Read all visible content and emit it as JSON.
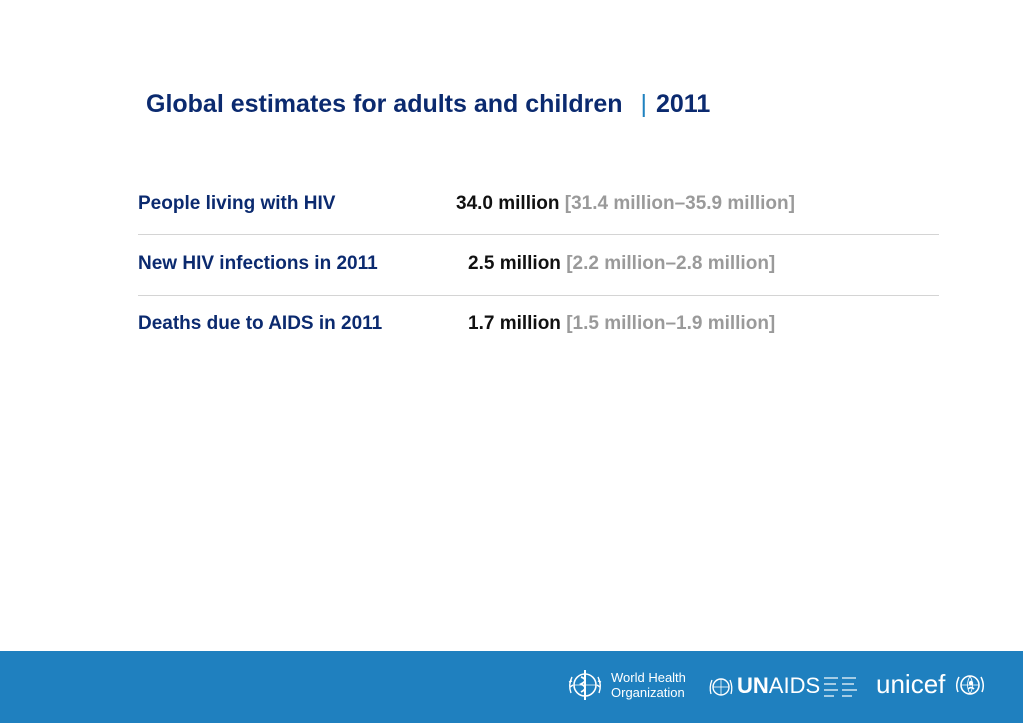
{
  "title": {
    "main": "Global estimates for adults and children",
    "separator": "|",
    "year": "2011"
  },
  "rows": [
    {
      "label": "People living with HIV",
      "value": "34.0 million",
      "range": "[31.4 million–35.9 million]"
    },
    {
      "label": "New HIV infections in 2011",
      "value": "2.5 million",
      "range": "[2.2 million–2.8 million]"
    },
    {
      "label": "Deaths due to AIDS in 2011",
      "value": "1.7 million",
      "range": "[1.5 million–1.9 million]"
    }
  ],
  "footer": {
    "who_line1": "World Health",
    "who_line2": "Organization",
    "unaids_un": "UN",
    "unaids_aids": "AIDS",
    "unicef": "unicef"
  },
  "colors": {
    "title": "#0b2a6f",
    "separator": "#1f82c0",
    "value": "#111111",
    "range": "#9a9a9a",
    "footer_bg": "#1f80bf"
  },
  "icons": [
    "who-emblem-icon",
    "unaids-emblem-icon",
    "unicef-emblem-icon"
  ]
}
